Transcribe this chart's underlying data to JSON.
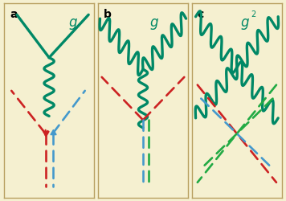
{
  "bg_color": "#f5f0d0",
  "border_color": "#b8a060",
  "gluon_color": "#008866",
  "red_color": "#cc2222",
  "blue_color": "#4499cc",
  "green_quark_color": "#22aa44",
  "label_a": "a",
  "label_b": "b",
  "label_c": "c",
  "label_g": "g",
  "label_g2": "g",
  "label_g2_exp": "2",
  "panel_title_fs": 10,
  "gluon_label_fs": 12
}
